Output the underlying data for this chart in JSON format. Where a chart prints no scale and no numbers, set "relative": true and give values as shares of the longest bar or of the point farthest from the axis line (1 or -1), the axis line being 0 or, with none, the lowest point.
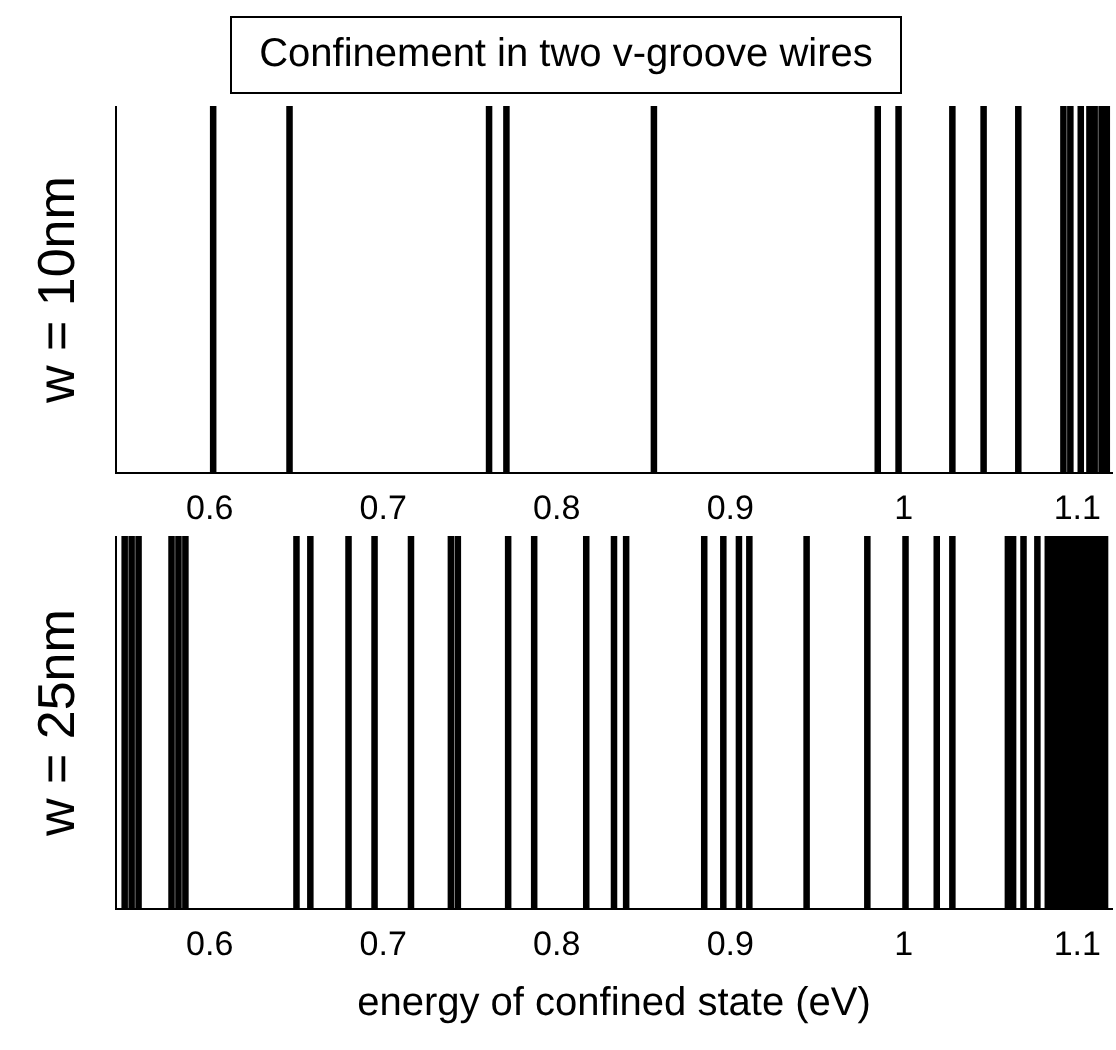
{
  "chart_data": [
    {
      "type": "bar",
      "title": "Confinement in two v-groove wires",
      "ylabel": "w = 10nm",
      "relative": true,
      "color": "#000000",
      "x": [
        0.602,
        0.646,
        0.761,
        0.771,
        0.856,
        0.985,
        0.997,
        1.028,
        1.046,
        1.066,
        1.092,
        1.096,
        1.102,
        1.107,
        1.11,
        1.114,
        1.117
      ],
      "values": [
        1,
        1,
        1,
        1,
        1,
        1,
        1,
        1,
        1,
        1,
        1,
        1,
        1,
        1,
        1,
        1,
        1
      ],
      "xlim": [
        0.546,
        1.12
      ],
      "xticks": [
        0.6,
        0.7,
        0.8,
        0.9,
        1,
        1.1
      ],
      "grid": false,
      "legend": false
    },
    {
      "type": "bar",
      "xlabel": "energy of confined state (eV)",
      "ylabel": "w = 25nm",
      "relative": true,
      "color": "#000000",
      "x": [
        0.551,
        0.555,
        0.559,
        0.578,
        0.582,
        0.586,
        0.65,
        0.658,
        0.68,
        0.695,
        0.716,
        0.739,
        0.743,
        0.772,
        0.787,
        0.817,
        0.833,
        0.84,
        0.885,
        0.896,
        0.905,
        0.911,
        0.944,
        0.979,
        1.001,
        1.019,
        1.028,
        1.06,
        1.063,
        1.069,
        1.077,
        1.083,
        1.086,
        1.089,
        1.092,
        1.095,
        1.098,
        1.101,
        1.104,
        1.107,
        1.11,
        1.113,
        1.116
      ],
      "values": [
        1,
        1,
        1,
        1,
        1,
        1,
        1,
        1,
        1,
        1,
        1,
        1,
        1,
        1,
        1,
        1,
        1,
        1,
        1,
        1,
        1,
        1,
        1,
        1,
        1,
        1,
        1,
        1,
        1,
        1,
        1,
        1,
        1,
        1,
        1,
        1,
        1,
        1,
        1,
        1,
        1,
        1,
        1
      ],
      "xlim": [
        0.546,
        1.12
      ],
      "xticks": [
        0.6,
        0.7,
        0.8,
        0.9,
        1,
        1.1
      ],
      "grid": false,
      "legend": false
    }
  ]
}
